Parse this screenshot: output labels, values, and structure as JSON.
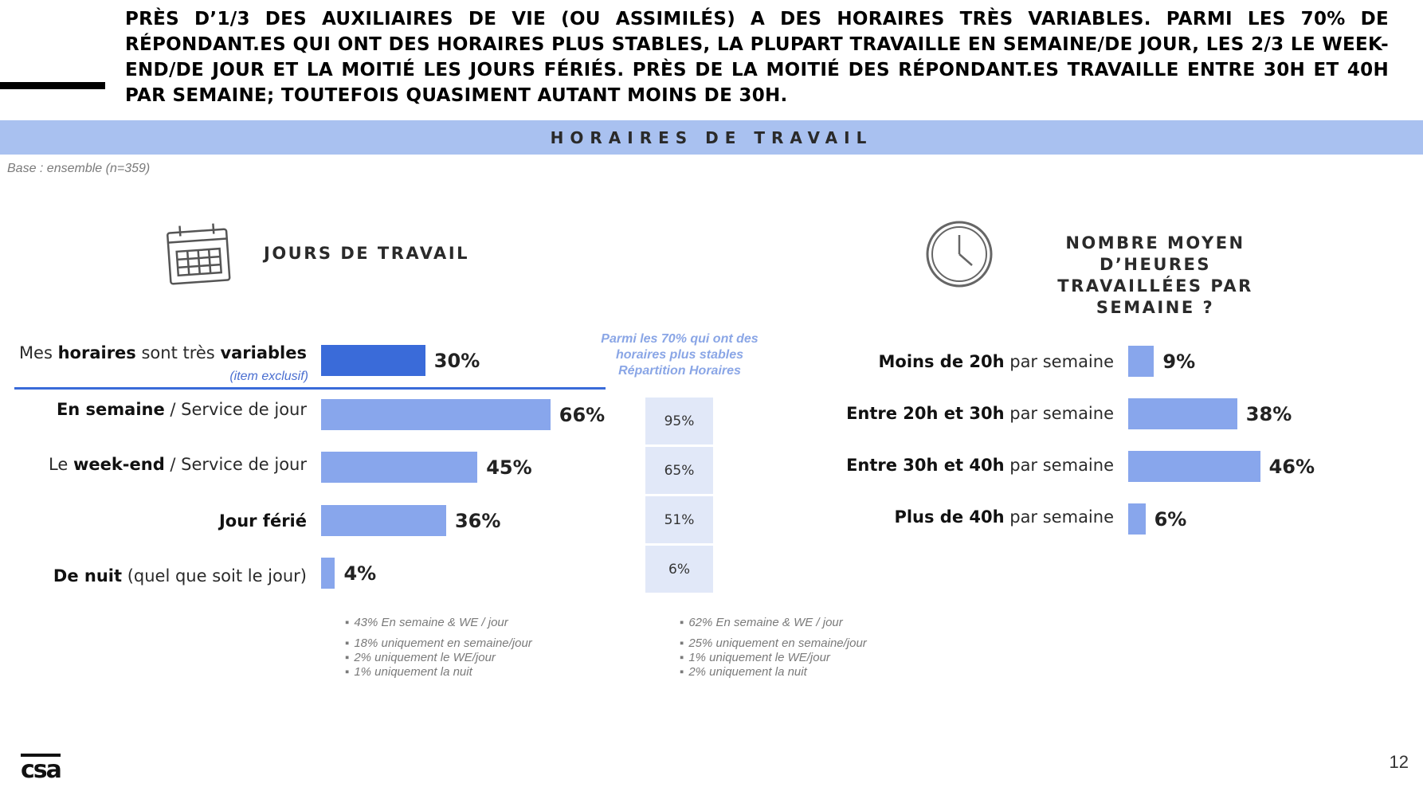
{
  "headline": "PRÈS D’1/3 DES AUXILIAIRES DE VIE (OU ASSIMILÉS) A DES HORAIRES TRÈS VARIABLES. PARMI LES 70% DE RÉPONDANT.ES QUI ONT DES HORAIRES PLUS STABLES, LA PLUPART TRAVAILLE EN SEMAINE/DE JOUR, LES 2/3 LE WEEK-END/DE JOUR ET LA MOITIÉ LES JOURS FÉRIÉS. PRÈS DE LA MOITIÉ DES RÉPONDANT.ES TRAVAILLE ENTRE 30H ET 40H PAR SEMAINE; TOUTEFOIS QUASIMENT AUTANT MOINS DE 30H.",
  "section_title": "HORAIRES DE TRAVAIL",
  "base_note": "Base : ensemble (n=359)",
  "left_heading": "JOURS DE TRAVAIL",
  "right_heading_line1": "NOMBRE MOYEN D’HEURES",
  "right_heading_line2": "TRAVAILLÉES PAR SEMAINE ?",
  "icons": {
    "left": "calendar-icon",
    "right": "clock-icon"
  },
  "colors": {
    "accent_bar": "#3a6bd9",
    "bar": "#88a6ec",
    "banner": "#a9c1f0",
    "stable_cell": "#e1e8f8",
    "caption": "#8aa6e6"
  },
  "left_rows": {
    "r0": {
      "bold1": "horaires",
      "t1": "Mes ",
      "t2": " sont très ",
      "bold2": "variables",
      "note": "(item exclusif)",
      "pct": "30%"
    },
    "r1": {
      "bold": "En semaine",
      "rest": " / Service de jour",
      "pct": "66%"
    },
    "r2": {
      "pre": "Le ",
      "bold": "week-end",
      "rest": " / Service de jour",
      "pct": "45%"
    },
    "r3": {
      "bold": "Jour férié",
      "pct": "36%"
    },
    "r4": {
      "bold": "De nuit",
      "rest": " (quel que soit le jour)",
      "pct": "4%"
    }
  },
  "stable_caption": {
    "line1": "Parmi les 70% qui ont des",
    "line2": "horaires plus stables",
    "line3": "Répartition Horaires"
  },
  "stable_values": [
    "95%",
    "65%",
    "51%",
    "6%"
  ],
  "left_footnotes": [
    "43% En semaine & WE / jour",
    "18% uniquement en semaine/jour",
    "2% uniquement le WE/jour",
    "1% uniquement la nuit"
  ],
  "mid_footnotes": [
    "62% En semaine & WE / jour",
    "25% uniquement en semaine/jour",
    "1% uniquement le WE/jour",
    "2% uniquement la nuit"
  ],
  "right_rows": {
    "r0": {
      "bold": "Moins de 20h",
      "rest": " par semaine",
      "pct": "9%"
    },
    "r1": {
      "bold": "Entre 20h et 30h",
      "rest": " par semaine",
      "pct": "38%"
    },
    "r2": {
      "bold": "Entre 30h et 40h",
      "rest": " par semaine",
      "pct": "46%"
    },
    "r3": {
      "bold": "Plus de 40h",
      "rest": " par semaine",
      "pct": "6%"
    }
  },
  "logo_text": "csa",
  "page_number": "12",
  "chart_data": [
    {
      "type": "bar",
      "title": "JOURS DE TRAVAIL",
      "categories": [
        "Mes horaires sont très variables",
        "En semaine / Service de jour",
        "Le week-end / Service de jour",
        "Jour férié",
        "De nuit (quel que soit le jour)"
      ],
      "values": [
        30,
        66,
        45,
        36,
        4
      ]
    },
    {
      "type": "table",
      "title": "Parmi les 70% qui ont des horaires plus stables Répartition Horaires",
      "categories": [
        "En semaine / Service de jour",
        "Le week-end / Service de jour",
        "Jour férié",
        "De nuit (quel que soit le jour)"
      ],
      "values": [
        95,
        65,
        51,
        6
      ]
    },
    {
      "type": "bar",
      "title": "NOMBRE MOYEN D’HEURES TRAVAILLÉES PAR SEMAINE ?",
      "categories": [
        "Moins de 20h par semaine",
        "Entre 20h et 30h par semaine",
        "Entre 30h et 40h par semaine",
        "Plus de 40h par semaine"
      ],
      "values": [
        9,
        38,
        46,
        6
      ]
    }
  ]
}
